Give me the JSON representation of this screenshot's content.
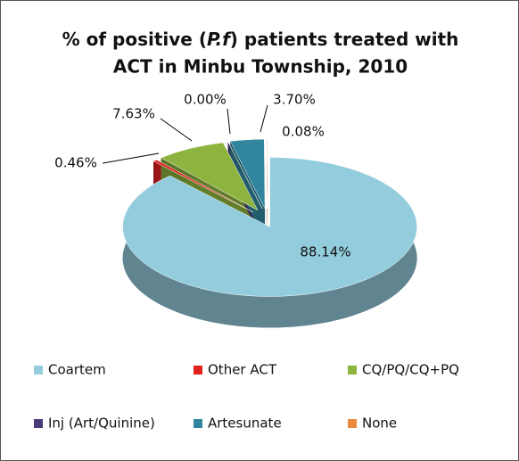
{
  "chart_data": {
    "type": "pie",
    "title": [
      "% of positive (",
      "P.f",
      ") patients treated with",
      "ACT in Minbu Township, 2010"
    ],
    "categories": [
      "Coartem",
      "Other ACT",
      "CQ/PQ/CQ+PQ",
      "Inj (Art/Quinine)",
      "Artesunate",
      "None"
    ],
    "values": [
      88.14,
      0.46,
      7.63,
      0.0,
      3.7,
      0.08
    ],
    "value_labels": [
      "88.14%",
      "0.46%",
      "7.63%",
      "0.00%",
      "3.70%",
      "0.08%"
    ],
    "colors": [
      "#93cddd",
      "#e0201e",
      "#8db43e",
      "#4b3a7a",
      "#31859c",
      "#e8893b"
    ],
    "legend": "bottom"
  }
}
